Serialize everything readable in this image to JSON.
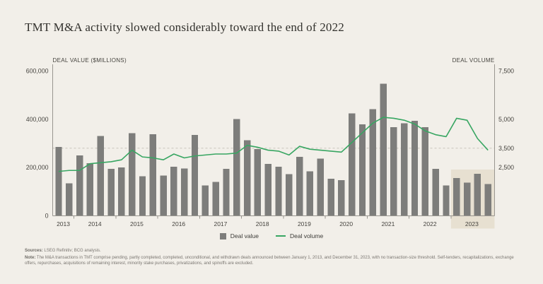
{
  "title": "TMT M&A activity slowed considerably toward the end of 2022",
  "colors": {
    "background": "#f2efe9",
    "bar": "#7d7d7b",
    "line": "#38a662",
    "highlight": "#e7e0d1",
    "grid_dash": "#c7c4bb",
    "axis": "#999690",
    "text_title": "#33322e",
    "text_tick": "#45433e",
    "text_footer": "#7a7671"
  },
  "axes": {
    "left": {
      "caption": "DEAL VALUE ($MILLIONS)",
      "max": 600000,
      "ticks": [
        {
          "label": "0",
          "value": 0
        },
        {
          "label": "200,000",
          "value": 200000
        },
        {
          "label": "400,000",
          "value": 400000
        },
        {
          "label": "600,000",
          "value": 600000
        }
      ]
    },
    "right": {
      "caption": "DEAL VOLUME",
      "max": 7500,
      "ticks": [
        {
          "label": "2,500",
          "value": 2500
        },
        {
          "label": "3,500",
          "value": 3500
        },
        {
          "label": "5,000",
          "value": 5000
        },
        {
          "label": "7,500",
          "value": 7500
        }
      ]
    }
  },
  "legend": [
    {
      "label": "Deal value",
      "marker": "square"
    },
    {
      "label": "Deal volume",
      "marker": "line"
    }
  ],
  "footer": {
    "sources_label": "Sources:",
    "sources_text": " LSEG Refinitiv; BCG analysis.",
    "note_label": "Note:",
    "note_text": " The M&A transactions in TMT comprise pending, partly completed, completed, unconditional, and withdrawn deals announced between January 1, 2013, and December 31, 2023, with no transaction-size threshold. Self-tenders, recapitalizations, exchange offers, repurchases, acquisitions of remaining interest, minority stake purchases, privatizations, and spinoffs are excluded."
  },
  "chart_data": {
    "type": "combo (quarterly bars + line)",
    "highlight_year": "2023",
    "reference_line": {
      "axis": "right",
      "value": 3500
    },
    "series_info": [
      {
        "name": "Deal value",
        "type": "bar",
        "axis": "left",
        "unit": "$ millions"
      },
      {
        "name": "Deal volume",
        "type": "line",
        "axis": "right",
        "unit": "number of deals"
      }
    ],
    "years": [
      {
        "year": "2013",
        "deal_value": [
          286000,
          135000
        ],
        "deal_volume": [
          2300,
          2350
        ]
      },
      {
        "year": "2014",
        "deal_value": [
          250000,
          218000,
          330000,
          194000
        ],
        "deal_volume": [
          2350,
          2700,
          2750,
          2800
        ]
      },
      {
        "year": "2015",
        "deal_value": [
          201000,
          343000,
          164000,
          338000
        ],
        "deal_volume": [
          2900,
          3400,
          3050,
          3000
        ]
      },
      {
        "year": "2016",
        "deal_value": [
          167000,
          203000,
          196000,
          335000
        ],
        "deal_volume": [
          2900,
          3200,
          3000,
          3100
        ]
      },
      {
        "year": "2017",
        "deal_value": [
          126000,
          141000,
          195000,
          401000
        ],
        "deal_volume": [
          3150,
          3200,
          3200,
          3250
        ]
      },
      {
        "year": "2018",
        "deal_value": [
          313000,
          277000,
          215000,
          204000
        ],
        "deal_volume": [
          3650,
          3550,
          3400,
          3350
        ]
      },
      {
        "year": "2019",
        "deal_value": [
          172000,
          245000,
          184000,
          237000
        ],
        "deal_volume": [
          3150,
          3600,
          3450,
          3400
        ]
      },
      {
        "year": "2020",
        "deal_value": [
          153000,
          148000,
          425000,
          379000
        ],
        "deal_volume": [
          3350,
          3300,
          3800,
          4300
        ]
      },
      {
        "year": "2021",
        "deal_value": [
          442000,
          547000,
          367000,
          384000
        ],
        "deal_volume": [
          4800,
          5100,
          5050,
          4950
        ]
      },
      {
        "year": "2022",
        "deal_value": [
          393000,
          367000,
          194000,
          126000
        ],
        "deal_volume": [
          4750,
          4400,
          4200,
          4100
        ]
      },
      {
        "year": "2023",
        "deal_value": [
          157000,
          138000,
          174000,
          131000
        ],
        "deal_volume": [
          5050,
          4950,
          4000,
          3400
        ]
      }
    ]
  }
}
